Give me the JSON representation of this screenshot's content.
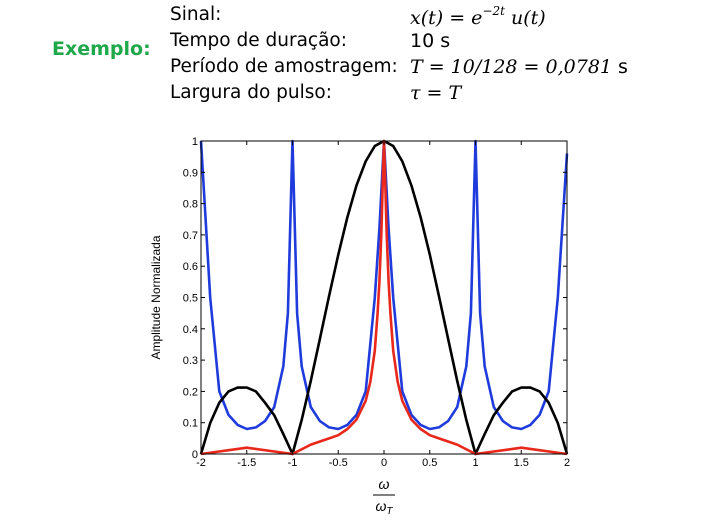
{
  "slide": {
    "example_label": "Exemplo:",
    "specs": [
      {
        "label": "Sinal:",
        "value_main": "x(t) = e",
        "value_sup": "−2t",
        "value_tail": " u(t)"
      },
      {
        "label": "Tempo de duração:",
        "value_main": "10 s",
        "value_sup": "",
        "value_tail": ""
      },
      {
        "label": "Período de amostragem:",
        "value_main": "T = 10/128 = 0,0781",
        "value_sup": "",
        "value_tail": " s"
      },
      {
        "label": "Largura do pulso:",
        "value_main": "τ = T",
        "value_sup": "",
        "value_tail": ""
      }
    ]
  },
  "chart_data": {
    "type": "line",
    "xlabel_num": "ω",
    "xlabel_den": "ω",
    "xlabel_den_sub": "T",
    "ylabel": "Amplitude Normalizada",
    "xlim": [
      -2,
      2
    ],
    "ylim": [
      0,
      1
    ],
    "x_ticks": [
      -2,
      -1.5,
      -1,
      -0.5,
      0,
      0.5,
      1,
      1.5,
      2
    ],
    "x_tick_labels": [
      "-2",
      "-1.5",
      "-1",
      "-0.5",
      "0",
      "0.5",
      "1",
      "1.5",
      "2"
    ],
    "y_ticks": [
      0,
      0.1,
      0.2,
      0.3,
      0.4,
      0.5,
      0.6,
      0.7,
      0.8,
      0.9,
      1
    ],
    "y_tick_labels": [
      "0",
      "0.1",
      "0.2",
      "0.3",
      "0.4",
      "0.5",
      "0.6",
      "0.7",
      "0.8",
      "0.9",
      "1"
    ],
    "grid": false,
    "series": [
      {
        "color": "#1f3bdc",
        "x": [
          -2,
          -1.9,
          -1.8,
          -1.7,
          -1.6,
          -1.5,
          -1.4,
          -1.3,
          -1.2,
          -1.1,
          -1.05,
          -1,
          -0.95,
          -0.9,
          -0.8,
          -0.7,
          -0.6,
          -0.5,
          -0.4,
          -0.3,
          -0.2,
          -0.1,
          -0.05,
          0,
          0.05,
          0.1,
          0.2,
          0.3,
          0.4,
          0.5,
          0.6,
          0.7,
          0.8,
          0.9,
          0.95,
          1,
          1.05,
          1.1,
          1.2,
          1.3,
          1.4,
          1.5,
          1.6,
          1.7,
          1.8,
          1.9,
          2
        ],
        "y": [
          1.0,
          0.5,
          0.2,
          0.125,
          0.093,
          0.08,
          0.085,
          0.105,
          0.15,
          0.28,
          0.45,
          1.0,
          0.45,
          0.28,
          0.15,
          0.105,
          0.085,
          0.08,
          0.093,
          0.125,
          0.2,
          0.5,
          0.72,
          1.0,
          0.72,
          0.5,
          0.2,
          0.125,
          0.093,
          0.08,
          0.085,
          0.105,
          0.15,
          0.28,
          0.45,
          1.0,
          0.45,
          0.28,
          0.15,
          0.105,
          0.085,
          0.08,
          0.093,
          0.125,
          0.2,
          0.5,
          0.96
        ]
      },
      {
        "color": "#000000",
        "x": [
          -2,
          -1.9,
          -1.8,
          -1.7,
          -1.6,
          -1.5,
          -1.4,
          -1.3,
          -1.2,
          -1.1,
          -1,
          -0.9,
          -0.8,
          -0.7,
          -0.6,
          -0.5,
          -0.4,
          -0.3,
          -0.2,
          -0.1,
          0,
          0.1,
          0.2,
          0.3,
          0.4,
          0.5,
          0.6,
          0.7,
          0.8,
          0.9,
          1,
          1.1,
          1.2,
          1.3,
          1.4,
          1.5,
          1.6,
          1.7,
          1.8,
          1.9,
          2
        ],
        "y": [
          0,
          0.099,
          0.164,
          0.2,
          0.212,
          0.212,
          0.2,
          0.164,
          0.124,
          0.064,
          0,
          0.109,
          0.234,
          0.368,
          0.505,
          0.637,
          0.757,
          0.858,
          0.935,
          0.984,
          1.0,
          0.984,
          0.935,
          0.858,
          0.757,
          0.637,
          0.505,
          0.368,
          0.234,
          0.109,
          0,
          0.064,
          0.124,
          0.164,
          0.2,
          0.212,
          0.212,
          0.2,
          0.164,
          0.099,
          0
        ]
      },
      {
        "color": "#e8281a",
        "x": [
          -2,
          -1.5,
          -1,
          -0.8,
          -0.6,
          -0.5,
          -0.4,
          -0.3,
          -0.2,
          -0.15,
          -0.1,
          -0.07,
          -0.05,
          -0.03,
          -0.015,
          0,
          0.015,
          0.03,
          0.05,
          0.07,
          0.1,
          0.15,
          0.2,
          0.3,
          0.4,
          0.5,
          0.6,
          0.8,
          1,
          1.5,
          2
        ],
        "y": [
          0,
          0.02,
          0,
          0.03,
          0.05,
          0.06,
          0.08,
          0.11,
          0.17,
          0.23,
          0.33,
          0.45,
          0.55,
          0.7,
          0.85,
          1.0,
          0.85,
          0.7,
          0.55,
          0.45,
          0.33,
          0.23,
          0.17,
          0.11,
          0.08,
          0.06,
          0.05,
          0.03,
          0,
          0.02,
          0
        ]
      }
    ]
  }
}
